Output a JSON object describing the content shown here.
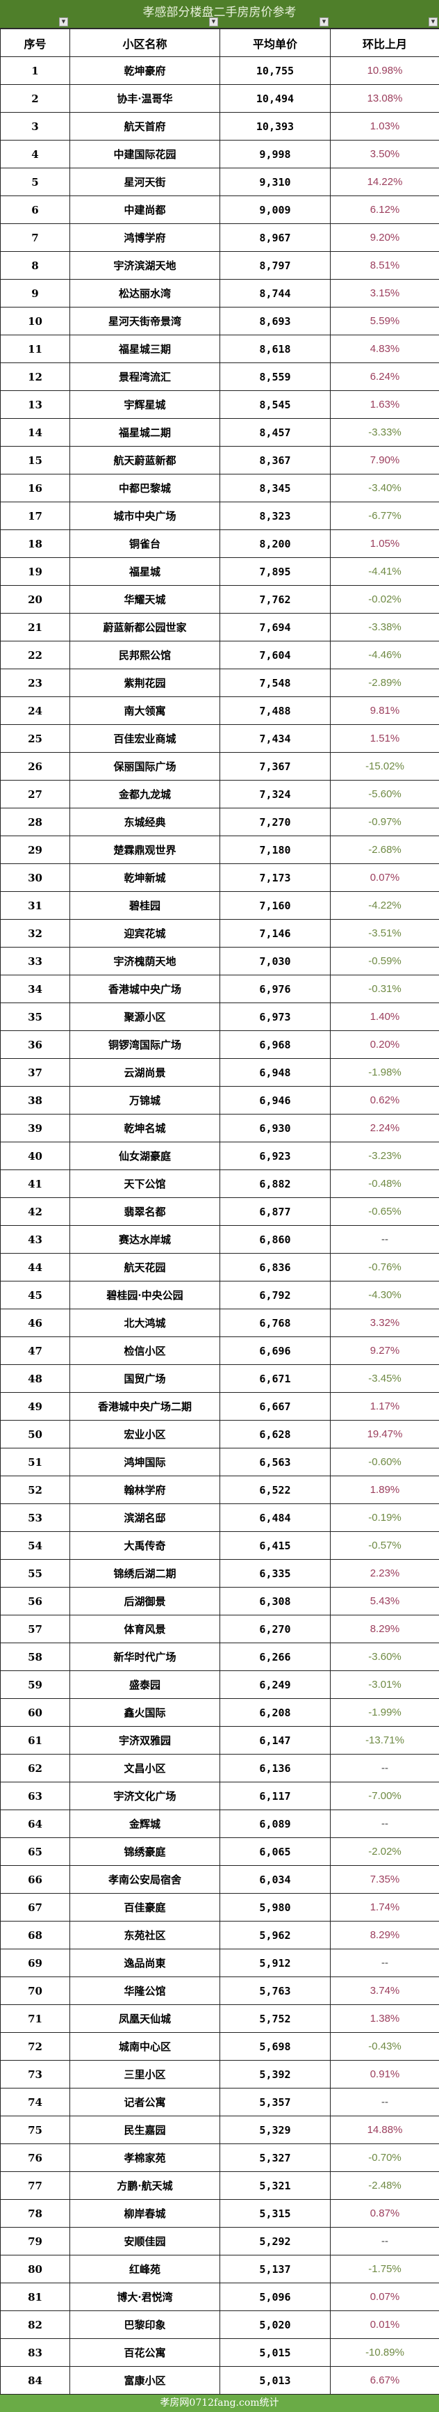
{
  "title": "孝感部分楼盘二手房房价参考",
  "headers": [
    "序号",
    "小区名称",
    "平均单价",
    "环比上月"
  ],
  "colors": {
    "title_bg": "#4f7f2a",
    "footer_bg": "#6aab46",
    "positive": "#9b3d5c",
    "negative": "#6f8a44"
  },
  "rows": [
    [
      "1",
      "乾坤豪府",
      "10,755",
      "10.98%"
    ],
    [
      "2",
      "协丰·温哥华",
      "10,494",
      "13.08%"
    ],
    [
      "3",
      "航天首府",
      "10,393",
      "1.03%"
    ],
    [
      "4",
      "中建国际花园",
      "9,998",
      "3.50%"
    ],
    [
      "5",
      "星河天街",
      "9,310",
      "14.22%"
    ],
    [
      "6",
      "中建尚都",
      "9,009",
      "6.12%"
    ],
    [
      "7",
      "鸿博学府",
      "8,967",
      "9.20%"
    ],
    [
      "8",
      "宇济滨湖天地",
      "8,797",
      "8.51%"
    ],
    [
      "9",
      "松达丽水湾",
      "8,744",
      "3.15%"
    ],
    [
      "10",
      "星河天街帝景湾",
      "8,693",
      "5.59%"
    ],
    [
      "11",
      "福星城三期",
      "8,618",
      "4.83%"
    ],
    [
      "12",
      "景程湾流汇",
      "8,559",
      "6.24%"
    ],
    [
      "13",
      "宇辉星城",
      "8,545",
      "1.63%"
    ],
    [
      "14",
      "福星城二期",
      "8,457",
      "-3.33%"
    ],
    [
      "15",
      "航天蔚蓝新都",
      "8,367",
      "7.90%"
    ],
    [
      "16",
      "中都巴黎城",
      "8,345",
      "-3.40%"
    ],
    [
      "17",
      "城市中央广场",
      "8,323",
      "-6.77%"
    ],
    [
      "18",
      "铜雀台",
      "8,200",
      "1.05%"
    ],
    [
      "19",
      "福星城",
      "7,895",
      "-4.41%"
    ],
    [
      "20",
      "华耀天城",
      "7,762",
      "-0.02%"
    ],
    [
      "21",
      "蔚蓝新都公园世家",
      "7,694",
      "-3.38%"
    ],
    [
      "22",
      "民邦熙公馆",
      "7,604",
      "-4.46%"
    ],
    [
      "23",
      "紫荆花园",
      "7,548",
      "-2.89%"
    ],
    [
      "24",
      "南大领寓",
      "7,488",
      "9.81%"
    ],
    [
      "25",
      "百佳宏业商城",
      "7,434",
      "1.51%"
    ],
    [
      "26",
      "保丽国际广场",
      "7,367",
      "-15.02%"
    ],
    [
      "27",
      "金都九龙城",
      "7,324",
      "-5.60%"
    ],
    [
      "28",
      "东城经典",
      "7,270",
      "-0.97%"
    ],
    [
      "29",
      "楚霖鼎观世界",
      "7,180",
      "-2.68%"
    ],
    [
      "30",
      "乾坤新城",
      "7,173",
      "0.07%"
    ],
    [
      "31",
      "碧桂园",
      "7,160",
      "-4.22%"
    ],
    [
      "32",
      "迎宾花城",
      "7,146",
      "-3.51%"
    ],
    [
      "33",
      "宇济槐荫天地",
      "7,030",
      "-0.59%"
    ],
    [
      "34",
      "香港城中央广场",
      "6,976",
      "-0.31%"
    ],
    [
      "35",
      "聚源小区",
      "6,973",
      "1.40%"
    ],
    [
      "36",
      "铜锣湾国际广场",
      "6,968",
      "0.20%"
    ],
    [
      "37",
      "云湖尚景",
      "6,948",
      "-1.98%"
    ],
    [
      "38",
      "万锦城",
      "6,946",
      "0.62%"
    ],
    [
      "39",
      "乾坤名城",
      "6,930",
      "2.24%"
    ],
    [
      "40",
      "仙女湖豪庭",
      "6,923",
      "-3.23%"
    ],
    [
      "41",
      "天下公馆",
      "6,882",
      "-0.48%"
    ],
    [
      "42",
      "翡翠名都",
      "6,877",
      "-0.65%"
    ],
    [
      "43",
      "赛达水岸城",
      "6,860",
      "--"
    ],
    [
      "44",
      "航天花园",
      "6,836",
      "-0.76%"
    ],
    [
      "45",
      "碧桂园·中央公园",
      "6,792",
      "-4.30%"
    ],
    [
      "46",
      "北大鸿城",
      "6,768",
      "3.32%"
    ],
    [
      "47",
      "检信小区",
      "6,696",
      "9.27%"
    ],
    [
      "48",
      "国贸广场",
      "6,671",
      "-3.45%"
    ],
    [
      "49",
      "香港城中央广场二期",
      "6,667",
      "1.17%"
    ],
    [
      "50",
      "宏业小区",
      "6,628",
      "19.47%"
    ],
    [
      "51",
      "鸿坤国际",
      "6,563",
      "-0.60%"
    ],
    [
      "52",
      "翰林学府",
      "6,522",
      "1.89%"
    ],
    [
      "53",
      "滨湖名邸",
      "6,484",
      "-0.19%"
    ],
    [
      "54",
      "大禹传奇",
      "6,415",
      "-0.57%"
    ],
    [
      "55",
      "锦绣后湖二期",
      "6,335",
      "2.23%"
    ],
    [
      "56",
      "后湖御景",
      "6,308",
      "5.43%"
    ],
    [
      "57",
      "体育风景",
      "6,270",
      "8.29%"
    ],
    [
      "58",
      "新华时代广场",
      "6,266",
      "-3.60%"
    ],
    [
      "59",
      "盛泰园",
      "6,249",
      "-3.01%"
    ],
    [
      "60",
      "鑫火国际",
      "6,208",
      "-1.99%"
    ],
    [
      "61",
      "宇济双雅园",
      "6,147",
      "-13.71%"
    ],
    [
      "62",
      "文昌小区",
      "6,136",
      "--"
    ],
    [
      "63",
      "宇济文化广场",
      "6,117",
      "-7.00%"
    ],
    [
      "64",
      "金辉城",
      "6,089",
      "--"
    ],
    [
      "65",
      "锦绣豪庭",
      "6,065",
      "-2.02%"
    ],
    [
      "66",
      "孝南公安局宿舍",
      "6,034",
      "7.35%"
    ],
    [
      "67",
      "百佳豪庭",
      "5,980",
      "1.74%"
    ],
    [
      "68",
      "东苑社区",
      "5,962",
      "8.29%"
    ],
    [
      "69",
      "逸品尚東",
      "5,912",
      "--"
    ],
    [
      "70",
      "华隆公馆",
      "5,763",
      "3.74%"
    ],
    [
      "71",
      "凤凰天仙城",
      "5,752",
      "1.38%"
    ],
    [
      "72",
      "城南中心区",
      "5,698",
      "-0.43%"
    ],
    [
      "73",
      "三里小区",
      "5,392",
      "0.91%"
    ],
    [
      "74",
      "记者公寓",
      "5,357",
      "--"
    ],
    [
      "75",
      "民生嘉园",
      "5,329",
      "14.88%"
    ],
    [
      "76",
      "孝棉家苑",
      "5,327",
      "-0.70%"
    ],
    [
      "77",
      "方鹏·航天城",
      "5,321",
      "-2.48%"
    ],
    [
      "78",
      "柳岸春城",
      "5,315",
      "0.87%"
    ],
    [
      "79",
      "安顺佳园",
      "5,292",
      "--"
    ],
    [
      "80",
      "红峰苑",
      "5,137",
      "-1.75%"
    ],
    [
      "81",
      "博大·君悦湾",
      "5,096",
      "0.07%"
    ],
    [
      "82",
      "巴黎印象",
      "5,020",
      "0.01%"
    ],
    [
      "83",
      "百花公寓",
      "5,015",
      "-10.89%"
    ],
    [
      "84",
      "富康小区",
      "5,013",
      "6.67%"
    ]
  ],
  "footer": "孝房网0712fang.com统计"
}
